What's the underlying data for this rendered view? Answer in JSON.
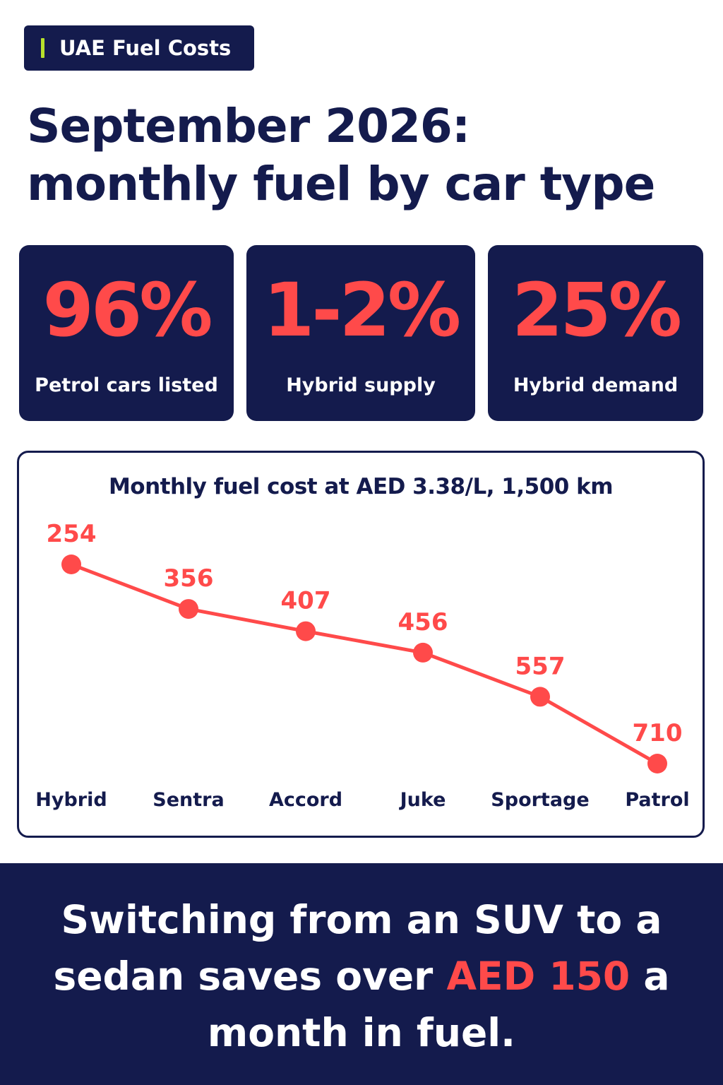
{
  "tag": {
    "label": "UAE Fuel Costs"
  },
  "headline": {
    "line1": "September 2026:",
    "line2": "monthly fuel by car type"
  },
  "stats": [
    {
      "value": "96%",
      "label": "Petrol cars listed"
    },
    {
      "value": "1-2%",
      "label": "Hybrid supply"
    },
    {
      "value": "25%",
      "label": "Hybrid demand"
    }
  ],
  "chart_data": {
    "type": "line",
    "title": "Monthly fuel cost at AED 3.38/L, 1,500 km",
    "categories": [
      "Hybrid",
      "Sentra",
      "Accord",
      "Juke",
      "Sportage",
      "Patrol"
    ],
    "values": [
      254,
      356,
      407,
      456,
      557,
      710
    ],
    "ylim": [
      254,
      710
    ],
    "xlabel": "",
    "ylabel": "",
    "grid": false,
    "data_labels": true
  },
  "footer": {
    "before": "Switching from an SUV to a sedan saves over ",
    "highlight": "AED 150",
    "after": " a month in fuel."
  },
  "colors": {
    "navy": "#141b4d",
    "accent": "#ff4a4a",
    "tag_bar": "#b7e12c",
    "white": "#ffffff"
  }
}
